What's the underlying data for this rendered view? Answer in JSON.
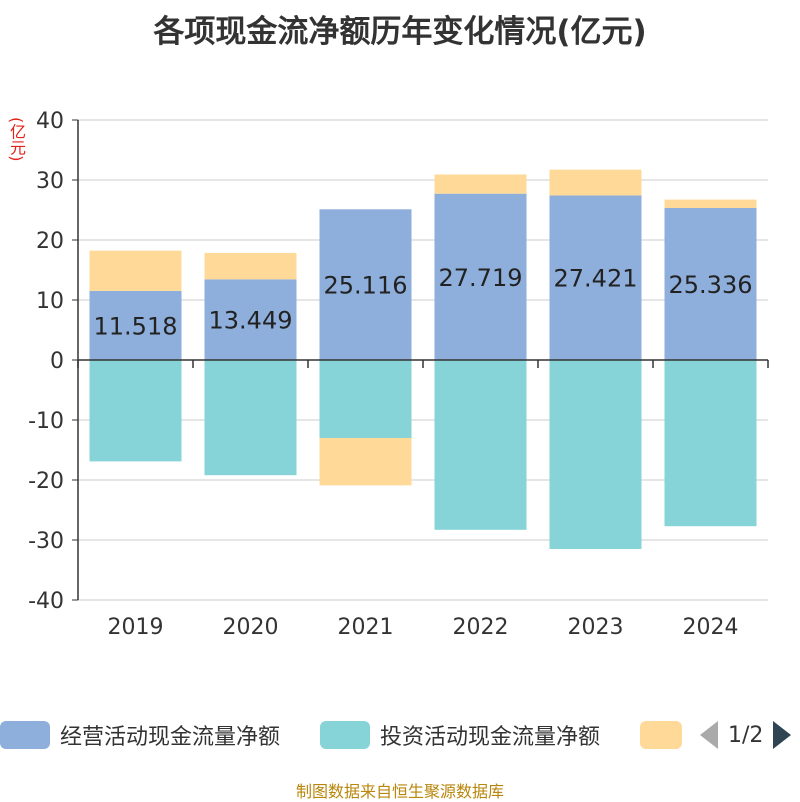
{
  "chart_data": {
    "type": "bar",
    "stacked": true,
    "title": "各项现金流净额历年变化情况(亿元)",
    "ylabel": "(亿元)",
    "categories": [
      "2019",
      "2020",
      "2021",
      "2022",
      "2023",
      "2024"
    ],
    "ylim": [
      -40,
      40
    ],
    "yticks": [
      40,
      30,
      20,
      10,
      0,
      -10,
      -20,
      -30,
      -40
    ],
    "grid": true,
    "series": [
      {
        "name": "经营活动现金流量净额",
        "color": "#8eaedb",
        "values": [
          11.518,
          13.449,
          25.116,
          27.719,
          27.421,
          25.336
        ],
        "labels": [
          "11.518",
          "13.449",
          "25.116",
          "27.719",
          "27.421",
          "25.336"
        ]
      },
      {
        "name": "投资活动现金流量净额",
        "color": "#86d4d7",
        "values": [
          -16.9,
          -19.2,
          -13.0,
          -28.3,
          -31.5,
          -27.7
        ]
      },
      {
        "name": "",
        "color": "#ffd998",
        "values": [
          6.7,
          4.4,
          -7.9,
          3.2,
          4.3,
          1.4
        ]
      }
    ]
  },
  "legend": {
    "items": [
      {
        "label": "经营活动现金流量净额",
        "color": "#8eaedb"
      },
      {
        "label": "投资活动现金流量净额",
        "color": "#86d4d7"
      },
      {
        "label": "",
        "color": "#ffd998"
      }
    ],
    "page": "1/2",
    "placement": "bottom"
  },
  "source": "制图数据来自恒生聚源数据库"
}
